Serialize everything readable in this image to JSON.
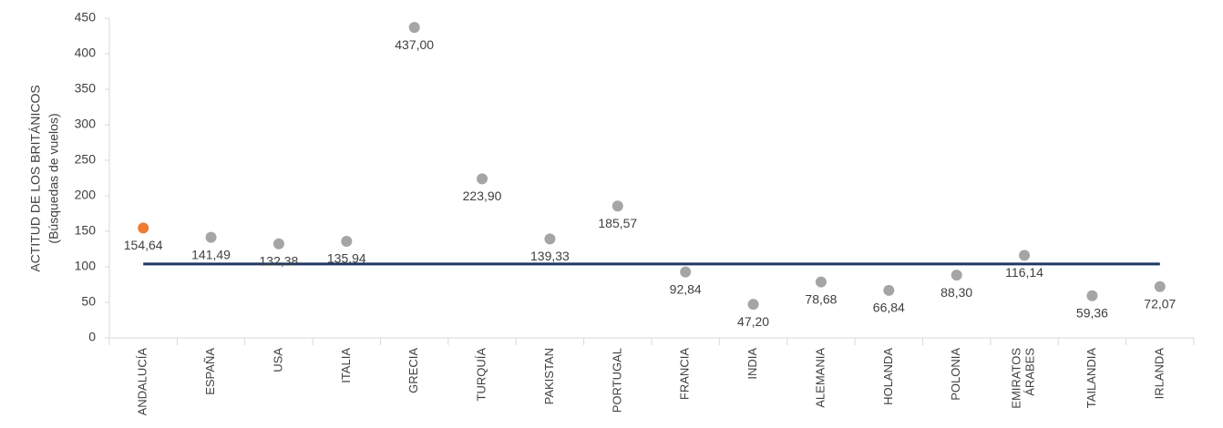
{
  "chart_data": {
    "type": "dot",
    "y_label": [
      "ACTITUD DE LOS BRITÁNICOS",
      "(Búsquedas de vuelos)"
    ],
    "categories": [
      "ANDALUCÍA",
      "ESPAÑA",
      "USA",
      "ITALIA",
      "GRECIA",
      "TURQUÍA",
      "PAKISTAN",
      "PORTUGAL",
      "FRANCIA",
      "INDIA",
      "ALEMANIA",
      "HOLANDA",
      "POLONIA",
      "EMIRATOS ÁRABES",
      "TAILANDIA",
      "IRLANDA"
    ],
    "values": [
      154.64,
      141.49,
      132.38,
      135.94,
      437.0,
      223.9,
      139.33,
      185.57,
      92.84,
      47.2,
      78.68,
      66.84,
      88.3,
      116.14,
      59.36,
      72.07
    ],
    "value_labels": [
      "154,64",
      "141,49",
      "132,38",
      "135,94",
      "437,00",
      "223,90",
      "139,33",
      "185,57",
      "92,84",
      "47,20",
      "78,68",
      "66,84",
      "88,30",
      "116,14",
      "59,36",
      "72,07"
    ],
    "colors": [
      "#ED7D31",
      "#A5A5A5",
      "#A5A5A5",
      "#A5A5A5",
      "#A5A5A5",
      "#A5A5A5",
      "#A5A5A5",
      "#A5A5A5",
      "#A5A5A5",
      "#A5A5A5",
      "#A5A5A5",
      "#A5A5A5",
      "#A5A5A5",
      "#A5A5A5",
      "#A5A5A5",
      "#A5A5A5"
    ],
    "reference_line": 104,
    "reference_color": "#1F3864",
    "ylim": [
      0,
      450
    ],
    "yticks": [
      0,
      50,
      100,
      150,
      200,
      250,
      300,
      350,
      400,
      450
    ]
  }
}
